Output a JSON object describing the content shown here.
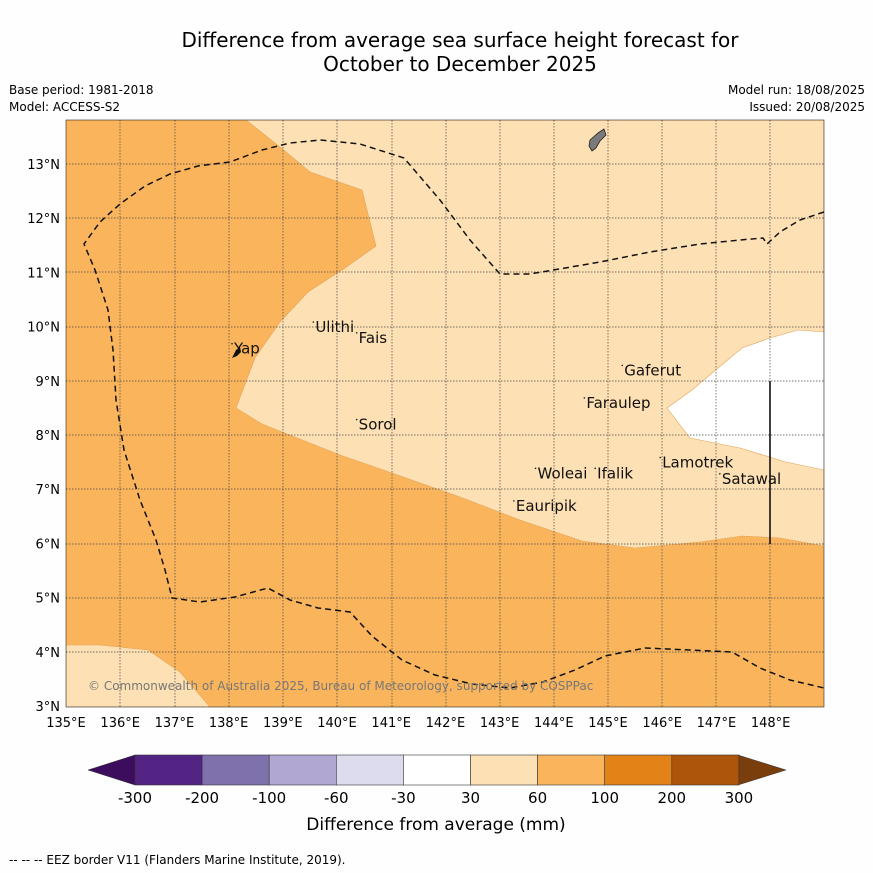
{
  "title": {
    "line1": "Difference from average sea surface height forecast for",
    "line2": "October to December 2025"
  },
  "meta": {
    "base_period": "Base period: 1981-2018",
    "model": "Model: ACCESS-S2",
    "model_run": "Model run: 18/08/2025",
    "issued": "Issued: 20/08/2025"
  },
  "map": {
    "lon_labels": [
      "135°E",
      "136°E",
      "137°E",
      "138°E",
      "139°E",
      "140°E",
      "141°E",
      "142°E",
      "143°E",
      "144°E",
      "145°E",
      "146°E",
      "147°E",
      "148°E"
    ],
    "lat_labels": [
      "3°N",
      "4°N",
      "5°N",
      "6°N",
      "7°N",
      "8°N",
      "9°N",
      "10°N",
      "11°N",
      "12°N",
      "13°N"
    ],
    "copyright": "© Commonwealth of Australia 2025, Bureau of Meteorology, supported by COSPPac",
    "places": [
      {
        "name": "Yap",
        "lon": 138.1,
        "lat": 9.5
      },
      {
        "name": "Ulithi",
        "lon": 139.6,
        "lat": 9.9
      },
      {
        "name": "Fais",
        "lon": 140.4,
        "lat": 9.7
      },
      {
        "name": "Sorol",
        "lon": 140.4,
        "lat": 8.1
      },
      {
        "name": "Gaferut",
        "lon": 145.3,
        "lat": 9.1
      },
      {
        "name": "Faraulep",
        "lon": 144.6,
        "lat": 8.5
      },
      {
        "name": "Woleai",
        "lon": 143.7,
        "lat": 7.2
      },
      {
        "name": "Ifalik",
        "lon": 144.8,
        "lat": 7.2
      },
      {
        "name": "Lamotrek",
        "lon": 146.0,
        "lat": 7.4
      },
      {
        "name": "Satawal",
        "lon": 147.1,
        "lat": 7.1
      },
      {
        "name": "Eauripik",
        "lon": 143.3,
        "lat": 6.6
      }
    ]
  },
  "legend": {
    "ticks": [
      "-300",
      "-200",
      "-100",
      "-60",
      "-30",
      "30",
      "60",
      "100",
      "200",
      "300"
    ],
    "label": "Difference from average (mm)",
    "colors": [
      "#3b0d5c",
      "#542484",
      "#7f72ac",
      "#b0a8d2",
      "#dcdcee",
      "#ffffff",
      "#fde0b3",
      "#fab55c",
      "#e28217",
      "#ad560b",
      "#7a3d0c"
    ]
  },
  "footer": "--  --  -- EEZ border V11 (Flanders Marine Institute, 2019)."
}
